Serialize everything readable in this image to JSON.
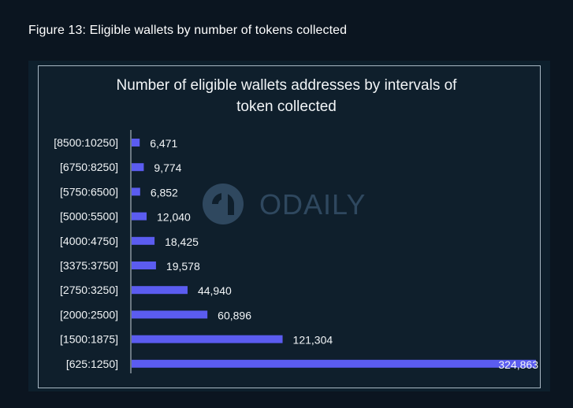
{
  "figure_caption": "Figure 13: Eligible wallets by number of tokens collected",
  "watermark": {
    "text": "ODAILY",
    "icon": "odaily-logo-icon"
  },
  "colors": {
    "bar": "#5b5cf0",
    "background": "#0b1520",
    "panel": "#0f1f2c",
    "text": "#f2f5f7"
  },
  "chart_data": {
    "type": "bar",
    "orientation": "horizontal",
    "title_lines": [
      "Number of eligible wallets addresses by intervals of",
      "token collected"
    ],
    "xlabel": "",
    "ylabel": "",
    "grid": false,
    "legend": "none",
    "xlim": [
      0,
      324863
    ],
    "categories": [
      "[8500:10250]",
      "[6750:8250]",
      "[5750:6500]",
      "[5000:5500]",
      "[4000:4750]",
      "[3375:3750]",
      "[2750:3250]",
      "[2000:2500]",
      "[1500:1875]",
      "[625:1250]"
    ],
    "values": [
      6471,
      9774,
      6852,
      12040,
      18425,
      19578,
      44940,
      60896,
      121304,
      324863
    ],
    "value_labels": [
      "6,471",
      "9,774",
      "6,852",
      "12,040",
      "18,425",
      "19,578",
      "44,940",
      "60,896",
      "121,304",
      "324,863"
    ]
  }
}
